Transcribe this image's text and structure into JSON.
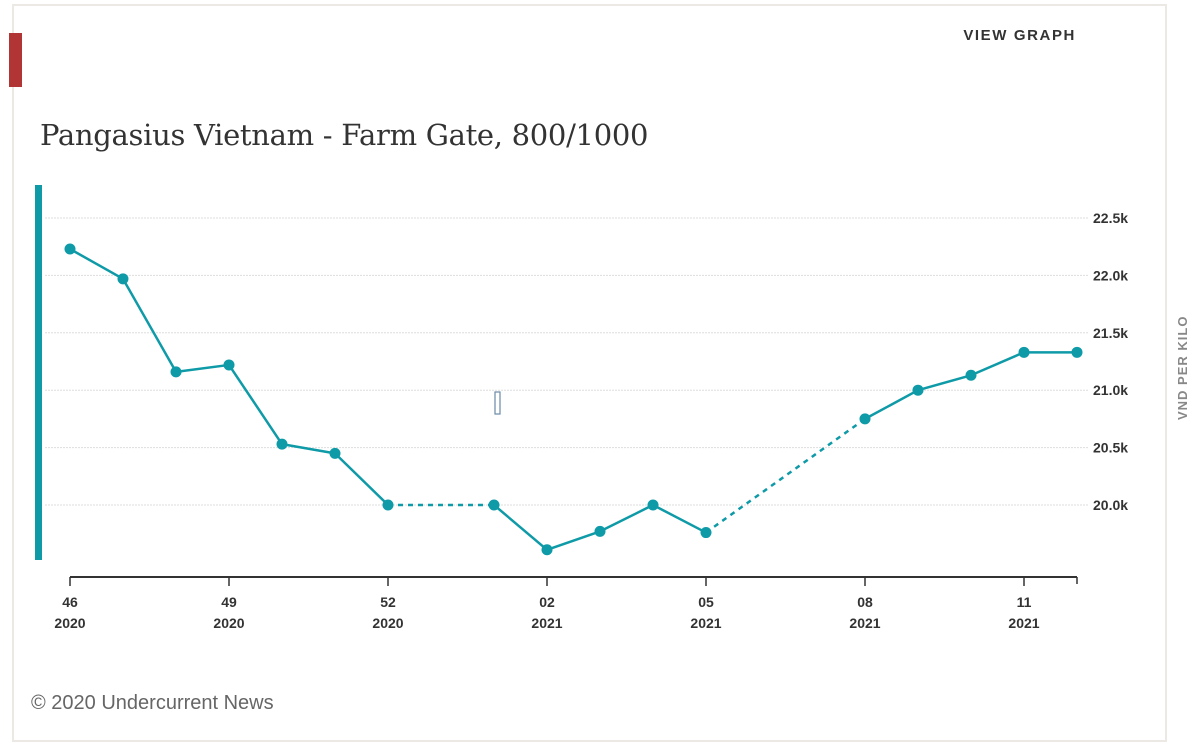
{
  "header": {
    "view_graph_label": "VIEW GRAPH",
    "title": "Pangasius Vietnam - Farm Gate, 800/1000"
  },
  "footer": {
    "copyright": "© 2020 Undercurrent News"
  },
  "colors": {
    "series": "#0e9aa7",
    "accent": "#b23535"
  },
  "chart_data": {
    "type": "line",
    "title": "Pangasius Vietnam - Farm Gate, 800/1000",
    "ylabel": "VND PER KILO",
    "ylim": [
      19500,
      22800
    ],
    "yticks": [
      20000,
      20500,
      21000,
      21500,
      22000,
      22500
    ],
    "ytick_labels": [
      "20.0k",
      "20.5k",
      "21.0k",
      "21.5k",
      "22.0k",
      "22.5k"
    ],
    "grid": true,
    "x_weeks": [
      "46/2020",
      "47/2020",
      "48/2020",
      "49/2020",
      "50/2020",
      "51/2020",
      "52/2020",
      "53/2020",
      "01/2021",
      "02/2021",
      "03/2021",
      "04/2021",
      "05/2021",
      "06/2021",
      "07/2021",
      "08/2021",
      "09/2021",
      "10/2021",
      "11/2021",
      "12/2021"
    ],
    "xtick_labels": [
      {
        "week": "46",
        "year": "2020"
      },
      {
        "week": "49",
        "year": "2020"
      },
      {
        "week": "52",
        "year": "2020"
      },
      {
        "week": "02",
        "year": "2021"
      },
      {
        "week": "05",
        "year": "2021"
      },
      {
        "week": "08",
        "year": "2021"
      },
      {
        "week": "11",
        "year": "2021"
      }
    ],
    "values": [
      22230,
      21970,
      21160,
      21220,
      20530,
      20450,
      20000,
      null,
      20000,
      19610,
      19770,
      20000,
      19760,
      null,
      null,
      20750,
      21000,
      21130,
      21330,
      21330
    ],
    "missing_weeks_style": "dashed"
  }
}
